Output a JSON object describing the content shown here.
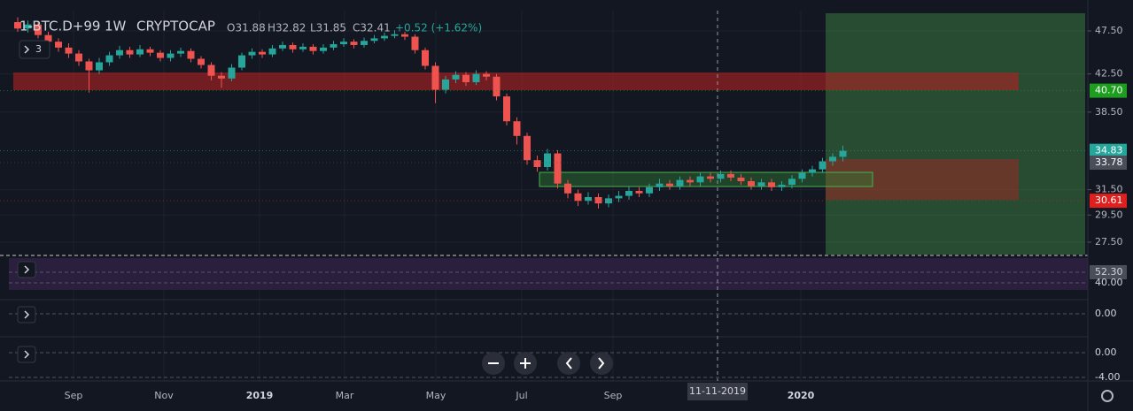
{
  "chart_data": {
    "type": "candlestick",
    "title": "1-BTC.D+99",
    "interval": "1W",
    "exchange": "CRYPTOCAP",
    "ohlc_legend": [
      "O31.88",
      "H32.82",
      "L31.85",
      "C32.41"
    ],
    "change": "+0.52 (+1.62%)",
    "indicator_count": 3,
    "up_color": "#26a69a",
    "down_color": "#ef5350",
    "log": true,
    "grid": true,
    "ylim": [
      26.63,
      50.07
    ],
    "yticks": [
      {
        "value": 47.5,
        "label": "47.50"
      },
      {
        "value": 42.5,
        "label": "42.50"
      },
      {
        "value": 38.5,
        "label": "38.50"
      },
      {
        "value": 31.5,
        "label": "31.50"
      },
      {
        "value": 29.5,
        "label": "29.50"
      },
      {
        "value": 27.5,
        "label": "27.50"
      }
    ],
    "x_labels": [
      "Sep",
      "Nov",
      "2019",
      "Mar",
      "May",
      "Jul",
      "Sep",
      "2020"
    ],
    "crosshair_label": "11-11-2019",
    "price_labels": [
      {
        "value": 40.7,
        "label": "40.70",
        "color": "#1e9e1e"
      },
      {
        "value": 34.83,
        "label": "34.83",
        "color": "#26a69a"
      },
      {
        "value": 33.78,
        "label": "33.78",
        "color": "#4a4e58"
      },
      {
        "value": 30.61,
        "label": "30.61",
        "color": "#e0201e"
      }
    ],
    "pane_labels": [
      [
        "52.30",
        "40.00"
      ],
      [
        "0.00"
      ],
      [
        "0.00",
        "-4.00"
      ]
    ],
    "ohlc": [
      [
        48.6,
        49.2,
        47.4,
        47.8
      ],
      [
        47.8,
        48.8,
        47.3,
        48.3
      ],
      [
        48.3,
        48.7,
        46.6,
        47.0
      ],
      [
        47.0,
        47.4,
        45.8,
        46.2
      ],
      [
        46.2,
        46.6,
        45.0,
        45.5
      ],
      [
        45.5,
        46.0,
        44.3,
        44.8
      ],
      [
        44.8,
        45.2,
        43.4,
        43.9
      ],
      [
        43.9,
        44.2,
        40.5,
        42.9
      ],
      [
        42.9,
        44.3,
        42.5,
        43.8
      ],
      [
        43.8,
        45.0,
        43.4,
        44.6
      ],
      [
        44.6,
        45.7,
        44.2,
        45.2
      ],
      [
        45.2,
        45.6,
        44.3,
        44.7
      ],
      [
        44.7,
        45.8,
        44.4,
        45.3
      ],
      [
        45.3,
        45.6,
        44.5,
        44.9
      ],
      [
        44.9,
        45.2,
        43.9,
        44.3
      ],
      [
        44.3,
        45.2,
        43.9,
        44.8
      ],
      [
        44.8,
        45.5,
        44.4,
        45.1
      ],
      [
        45.1,
        45.4,
        43.8,
        44.2
      ],
      [
        44.2,
        44.5,
        43.1,
        43.5
      ],
      [
        43.5,
        43.8,
        41.8,
        42.3
      ],
      [
        42.3,
        42.7,
        41.0,
        42.0
      ],
      [
        42.0,
        43.6,
        41.7,
        43.2
      ],
      [
        43.2,
        44.9,
        42.9,
        44.6
      ],
      [
        44.6,
        45.4,
        44.2,
        45.0
      ],
      [
        45.0,
        45.3,
        44.3,
        44.7
      ],
      [
        44.7,
        45.8,
        44.4,
        45.4
      ],
      [
        45.4,
        46.2,
        45.1,
        45.8
      ],
      [
        45.8,
        46.1,
        44.9,
        45.3
      ],
      [
        45.3,
        46.0,
        45.0,
        45.6
      ],
      [
        45.6,
        45.9,
        44.7,
        45.1
      ],
      [
        45.1,
        45.9,
        44.8,
        45.5
      ],
      [
        45.5,
        46.3,
        45.2,
        45.9
      ],
      [
        45.9,
        46.6,
        45.6,
        46.2
      ],
      [
        46.2,
        46.5,
        45.4,
        45.8
      ],
      [
        45.8,
        46.7,
        45.5,
        46.3
      ],
      [
        46.3,
        47.0,
        46.0,
        46.6
      ],
      [
        46.6,
        47.3,
        46.3,
        46.9
      ],
      [
        46.9,
        47.6,
        46.6,
        47.1
      ],
      [
        47.1,
        47.4,
        46.4,
        46.8
      ],
      [
        46.8,
        47.1,
        44.8,
        45.2
      ],
      [
        45.2,
        45.5,
        43.0,
        43.4
      ],
      [
        43.4,
        43.8,
        39.4,
        40.8
      ],
      [
        40.8,
        42.3,
        40.4,
        41.9
      ],
      [
        41.9,
        42.8,
        41.5,
        42.4
      ],
      [
        42.4,
        42.7,
        41.2,
        41.6
      ],
      [
        41.6,
        42.9,
        41.3,
        42.5
      ],
      [
        42.5,
        42.8,
        41.8,
        42.2
      ],
      [
        42.2,
        42.5,
        39.7,
        40.1
      ],
      [
        40.1,
        40.4,
        37.2,
        37.6
      ],
      [
        37.6,
        38.0,
        35.4,
        36.2
      ],
      [
        36.2,
        36.5,
        33.6,
        34.0
      ],
      [
        34.0,
        34.4,
        33.0,
        33.4
      ],
      [
        33.4,
        35.0,
        33.1,
        34.6
      ],
      [
        34.6,
        34.9,
        31.6,
        32.0
      ],
      [
        32.0,
        32.3,
        30.8,
        31.2
      ],
      [
        31.2,
        31.5,
        30.2,
        30.6
      ],
      [
        30.6,
        31.3,
        30.3,
        30.9
      ],
      [
        30.9,
        31.2,
        30.0,
        30.4
      ],
      [
        30.4,
        31.1,
        30.1,
        30.8
      ],
      [
        30.8,
        31.4,
        30.5,
        31.0
      ],
      [
        31.0,
        31.8,
        30.7,
        31.4
      ],
      [
        31.4,
        31.7,
        30.9,
        31.2
      ],
      [
        31.2,
        32.0,
        30.9,
        31.7
      ],
      [
        31.7,
        32.4,
        31.4,
        32.0
      ],
      [
        32.0,
        32.3,
        31.5,
        31.8
      ],
      [
        31.8,
        32.6,
        31.5,
        32.3
      ],
      [
        32.3,
        32.6,
        31.8,
        32.1
      ],
      [
        32.1,
        32.9,
        31.8,
        32.6
      ],
      [
        32.6,
        32.9,
        32.1,
        32.4
      ],
      [
        32.4,
        33.1,
        32.1,
        32.8
      ],
      [
        32.8,
        33.1,
        32.2,
        32.5
      ],
      [
        32.5,
        32.8,
        31.9,
        32.2
      ],
      [
        32.2,
        32.5,
        31.5,
        31.8
      ],
      [
        31.8,
        32.4,
        31.5,
        32.1
      ],
      [
        32.1,
        32.4,
        31.4,
        31.7
      ],
      [
        31.7,
        32.2,
        31.4,
        31.9
      ],
      [
        31.9,
        32.7,
        31.6,
        32.4
      ],
      [
        32.4,
        33.2,
        32.1,
        32.9
      ],
      [
        32.9,
        33.5,
        32.6,
        33.2
      ],
      [
        33.2,
        34.2,
        32.9,
        33.9
      ],
      [
        33.9,
        34.6,
        33.5,
        34.3
      ],
      [
        34.3,
        35.3,
        33.9,
        34.83
      ]
    ]
  }
}
